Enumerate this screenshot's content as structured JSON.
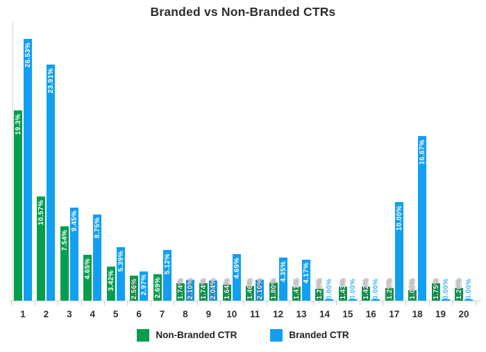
{
  "title": "Branded vs Non-Branded CTRs",
  "colors": {
    "non_branded_green": "#059e4e",
    "branded_blue": "#119ff2",
    "axis_gray": "#d4d4d4",
    "label_white": "#ffffff"
  },
  "legend": {
    "items": [
      {
        "label": "Non-Branded CTR",
        "color": "#059e4e"
      },
      {
        "label": "Branded CTR",
        "color": "#119ff2"
      }
    ]
  },
  "chart_data": {
    "type": "bar",
    "title": "Branded vs Non-Branded CTRs",
    "xlabel": "",
    "ylabel": "",
    "categories": [
      "1",
      "2",
      "3",
      "4",
      "5",
      "6",
      "7",
      "8",
      "9",
      "10",
      "11",
      "12",
      "13",
      "14",
      "15",
      "16",
      "17",
      "18",
      "19",
      "20"
    ],
    "series": [
      {
        "name": "Non-Branded CTR",
        "color": "#059e4e",
        "values": [
          19.3,
          10.57,
          7.54,
          4.65,
          3.42,
          2.56,
          2.69,
          1.74,
          1.74,
          1.64,
          1.46,
          1.8,
          1.41,
          1.23,
          1.43,
          1.42,
          1.29,
          1.05,
          1.75,
          1.26
        ],
        "labels": [
          "19.3%",
          "10.57%",
          "7.54%",
          "4.65%",
          "3.42%",
          "2.56%",
          "2.69%",
          "1.74%",
          "1.74%",
          "1.64%",
          "1.46%",
          "1.80%",
          "1.41%",
          "1.23%",
          "1.43%",
          "1.42%",
          "1.29%",
          "1.05%",
          "1.75%",
          "1.26%"
        ]
      },
      {
        "name": "Branded CTR",
        "color": "#119ff2",
        "values": [
          26.53,
          23.91,
          9.45,
          8.75,
          5.39,
          2.97,
          5.12,
          2.1,
          2.04,
          4.69,
          2.1,
          4.35,
          4.17,
          0.0,
          0.0,
          0.0,
          10.0,
          16.67,
          0.0,
          0.0
        ],
        "labels": [
          "26.53%",
          "23.91%",
          "9.45%",
          "8.75%",
          "5.39%",
          "2.97%",
          "5.12%",
          "2.10%",
          "2.04%",
          "4.69%",
          "2.10%",
          "4.35%",
          "4.17%",
          "0.00%",
          "0.00%",
          "0.00%",
          "10.00%",
          "16.67%",
          "0.00%",
          "0.00%"
        ]
      }
    ],
    "ylim": [
      0,
      28
    ],
    "grid": false,
    "legend_position": "bottom",
    "value_labels": "rotated-vertical-on-bars"
  }
}
